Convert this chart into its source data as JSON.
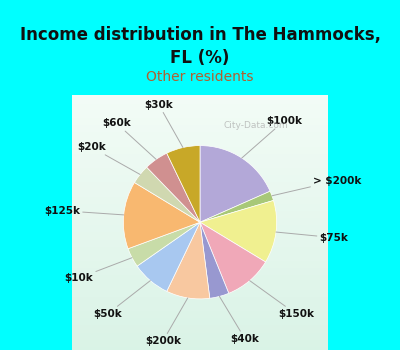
{
  "title": "Income distribution in The Hammocks,\nFL (%)",
  "subtitle": "Other residents",
  "bg_color": "#00FFFF",
  "chart_bg_colors": [
    "#e8f5ee",
    "#d8eee4",
    "#c8e8da"
  ],
  "labels": [
    "$100k",
    "> $200k",
    "$75k",
    "$150k",
    "$40k",
    "$200k",
    "$50k",
    "$10k",
    "$125k",
    "$20k",
    "$60k",
    "$30k"
  ],
  "values": [
    18,
    2,
    13,
    10,
    4,
    9,
    8,
    4,
    14,
    4,
    5,
    7
  ],
  "colors": [
    "#b3a8d8",
    "#a8c878",
    "#f0f090",
    "#f0a8b8",
    "#9898d0",
    "#f8c8a0",
    "#a8c8f0",
    "#c8dca8",
    "#f8b870",
    "#d0d8b0",
    "#d09090",
    "#c8a828"
  ],
  "label_fontsize": 7.5,
  "title_fontsize": 12,
  "subtitle_fontsize": 10,
  "subtitle_color": "#b06030",
  "startangle": 90,
  "watermark": "City-Data.com"
}
